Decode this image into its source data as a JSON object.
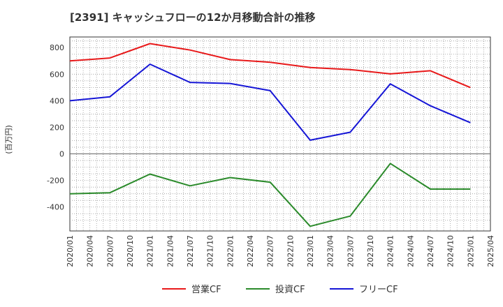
{
  "chart_data": {
    "type": "line",
    "title": "[2391]  キャッシュフローの12か月移動合計の推移",
    "ylabel": "(百万円)",
    "xlabel": "",
    "ylim": [
      -580,
      880
    ],
    "yticks": [
      800,
      600,
      400,
      200,
      0,
      -200,
      -400
    ],
    "categories": [
      "2020/01",
      "2020/04",
      "2020/07",
      "2020/10",
      "2021/01",
      "2021/04",
      "2021/07",
      "2021/10",
      "2022/01",
      "2022/04",
      "2022/07",
      "2022/10",
      "2023/01",
      "2023/04",
      "2023/07",
      "2023/10",
      "2024/01",
      "2024/04",
      "2024/07",
      "2024/10",
      "2025/01",
      "2025/04"
    ],
    "series": [
      {
        "name": "営業CF",
        "color": "#e8191a",
        "values": [
          700,
          null,
          722,
          null,
          830,
          null,
          782,
          null,
          710,
          null,
          690,
          null,
          650,
          null,
          635,
          null,
          602,
          null,
          626,
          null,
          500,
          null
        ]
      },
      {
        "name": "投資CF",
        "color": "#2a8a2a",
        "values": [
          -300,
          null,
          -292,
          null,
          -152,
          null,
          -240,
          null,
          -178,
          null,
          -213,
          null,
          -545,
          null,
          -468,
          null,
          -72,
          null,
          -265,
          null,
          -265,
          null
        ]
      },
      {
        "name": "フリーCF",
        "color": "#1515d6",
        "values": [
          400,
          null,
          430,
          null,
          675,
          null,
          538,
          null,
          530,
          null,
          476,
          null,
          103,
          null,
          163,
          null,
          527,
          null,
          362,
          null,
          235,
          null
        ]
      }
    ],
    "legend_position": "bottom"
  }
}
